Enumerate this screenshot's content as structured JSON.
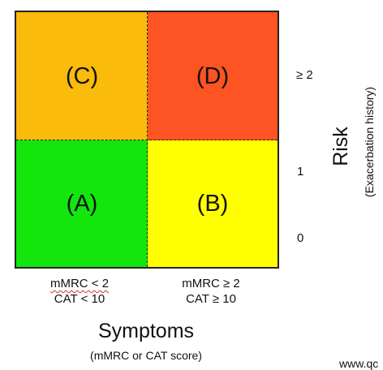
{
  "quadrants": {
    "c": {
      "label": "(C)",
      "color": "#fbbb0a"
    },
    "d": {
      "label": "(D)",
      "color": "#fe5322"
    },
    "a": {
      "label": "(A)",
      "color": "#12e60c"
    },
    "b": {
      "label": "(B)",
      "color": "#ffff00"
    }
  },
  "y_axis": {
    "title": "Risk",
    "subtitle": "(Exacerbation history)",
    "ticks": [
      "≥ 2",
      "1",
      "0"
    ]
  },
  "x_axis": {
    "title": "Symptoms",
    "subtitle": "(mMRC or CAT score)",
    "low": {
      "line1": "mMRC < 2",
      "line2": "CAT < 10"
    },
    "high": {
      "line1": "mMRC ≥ 2",
      "line2": "CAT ≥ 10"
    }
  },
  "credit": "www.qc"
}
